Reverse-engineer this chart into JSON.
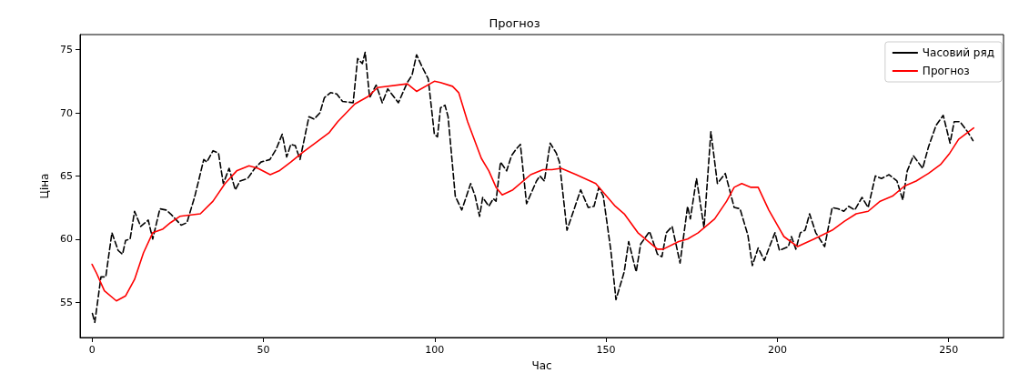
{
  "chart_data": {
    "type": "line",
    "title": "Прогноз",
    "xlabel": "Час",
    "ylabel": "Ціна",
    "xlim": [
      -3.5,
      266
    ],
    "xticks": [
      0,
      50,
      100,
      150,
      200,
      250
    ],
    "ylim": [
      52.2,
      76.2
    ],
    "yticks": [
      55,
      60,
      65,
      70,
      75
    ],
    "grid": false,
    "legend": "top right",
    "marker": "none",
    "series": [
      {
        "name": "Часовий ряд",
        "color": "#000000",
        "line_style": "dashed",
        "x": [
          0.1,
          0.8,
          2.6,
          4,
          5.8,
          7.6,
          8.9,
          9.8,
          11.1,
          12.4,
          14.2,
          16.4,
          17.7,
          19.8,
          21.6,
          22.9,
          24.3,
          26,
          27.7,
          30,
          32.6,
          33.5,
          35.3,
          36.9,
          38.3,
          40,
          41.8,
          43.2,
          45.4,
          47.5,
          49.3,
          51.9,
          53.7,
          55.5,
          56.8,
          58,
          59.3,
          60.7,
          63.3,
          64.8,
          66.5,
          67.8,
          69.6,
          71.4,
          73.1,
          76.2,
          77.5,
          78.9,
          79.7,
          81,
          82.9,
          84.7,
          86.3,
          89.4,
          92,
          93.4,
          94.7,
          96.4,
          98.1,
          99.9,
          100.8,
          101.7,
          103,
          103.9,
          106,
          107.9,
          110.5,
          111.8,
          113.1,
          114,
          115.8,
          117.1,
          117.9,
          119.2,
          121,
          122.4,
          123.7,
          125,
          126.8,
          129.7,
          130.7,
          132,
          133.7,
          135.5,
          136.4,
          138.6,
          142.6,
          144.8,
          146.5,
          147.9,
          149.2,
          151.4,
          152.9,
          155.3,
          156.6,
          158.8,
          160.1,
          162.7,
          165,
          166.3,
          167.6,
          169.3,
          171.6,
          173.8,
          174.6,
          176.4,
          178.6,
          180.6,
          182.5,
          184.8,
          187.4,
          189.1,
          191.4,
          192.7,
          194.4,
          196.2,
          198,
          199.3,
          200.6,
          203.2,
          204.1,
          205.4,
          206.7,
          208.1,
          209.4,
          211.2,
          213.8,
          216,
          217.7,
          219.4,
          220.8,
          222.6,
          224.7,
          226.5,
          228.6,
          230.4,
          232.6,
          234.9,
          236.6,
          237.9,
          239.7,
          242.4,
          244.1,
          246.3,
          248.4,
          250.4,
          251.6,
          253.3,
          255.5,
          257.1
        ],
        "values": [
          54.1,
          53.4,
          57.0,
          57.0,
          60.5,
          59.1,
          58.8,
          59.9,
          60.0,
          62.2,
          61.0,
          61.5,
          60.0,
          62.4,
          62.3,
          62.0,
          61.6,
          61.1,
          61.3,
          63.4,
          66.3,
          66.1,
          67.0,
          66.8,
          64.4,
          65.6,
          63.9,
          64.6,
          64.8,
          65.6,
          66.1,
          66.3,
          67.1,
          68.3,
          66.5,
          67.5,
          67.4,
          66.3,
          69.7,
          69.5,
          70.0,
          71.2,
          71.6,
          71.5,
          70.9,
          70.8,
          74.3,
          73.9,
          74.8,
          71.2,
          72.2,
          70.8,
          71.9,
          70.8,
          72.4,
          73.0,
          74.6,
          73.6,
          72.7,
          68.3,
          68.1,
          70.4,
          70.6,
          69.7,
          63.4,
          62.3,
          64.4,
          63.4,
          61.8,
          63.3,
          62.6,
          63.2,
          63.0,
          66.1,
          65.4,
          66.6,
          67.1,
          67.5,
          62.8,
          64.6,
          65.0,
          64.6,
          67.6,
          66.8,
          66.1,
          60.7,
          63.9,
          62.5,
          62.6,
          64.1,
          63.4,
          59.1,
          55.2,
          57.4,
          59.8,
          57.4,
          59.6,
          60.6,
          58.8,
          58.6,
          60.5,
          61.0,
          58.1,
          62.6,
          61.6,
          64.8,
          60.9,
          68.5,
          64.4,
          65.2,
          62.5,
          62.4,
          60.3,
          57.9,
          59.3,
          58.3,
          59.6,
          60.5,
          59.1,
          59.4,
          60.2,
          59.2,
          60.5,
          60.7,
          62.0,
          60.5,
          59.4,
          62.5,
          62.4,
          62.2,
          62.6,
          62.3,
          63.3,
          62.5,
          65.0,
          64.8,
          65.1,
          64.6,
          63.1,
          65.4,
          66.6,
          65.6,
          67.3,
          69.0,
          69.8,
          67.6,
          69.3,
          69.3,
          68.5,
          67.8
        ]
      },
      {
        "name": "Прогноз",
        "color": "#ff0000",
        "line_style": "solid",
        "x": [
          0,
          1.3,
          3.6,
          7.1,
          9.8,
          12.4,
          15,
          17.7,
          20.7,
          22.9,
          25.6,
          31.6,
          35.3,
          38.8,
          42.2,
          45.8,
          48.4,
          52,
          54.6,
          58,
          61.6,
          65.1,
          69.1,
          71.7,
          76.7,
          80.6,
          83.3,
          92,
          94.7,
          99.9,
          101.7,
          105.2,
          107,
          109.6,
          113.6,
          115.8,
          117.9,
          119.7,
          122.8,
          128,
          131.6,
          134.2,
          136.9,
          141.3,
          147,
          152.7,
          155.3,
          159.3,
          165,
          166.7,
          171.2,
          173.8,
          176.9,
          181.7,
          185.2,
          187.4,
          189.6,
          192.3,
          194.4,
          197.5,
          201.9,
          205.9,
          210.7,
          216,
          219.5,
          223,
          226.5,
          230,
          233.6,
          237.1,
          240.5,
          244.1,
          247.6,
          250.3,
          252.9,
          257.3
        ],
        "values": [
          58.0,
          57.3,
          55.9,
          55.1,
          55.5,
          56.8,
          58.9,
          60.5,
          60.8,
          61.3,
          61.8,
          62.0,
          63.0,
          64.4,
          65.4,
          65.8,
          65.6,
          65.1,
          65.4,
          66.1,
          66.9,
          67.6,
          68.4,
          69.3,
          70.7,
          71.3,
          72.0,
          72.3,
          71.7,
          72.5,
          72.4,
          72.1,
          71.6,
          69.3,
          66.4,
          65.4,
          64.1,
          63.5,
          63.9,
          65.1,
          65.5,
          65.5,
          65.6,
          65.1,
          64.4,
          62.6,
          62.0,
          60.5,
          59.2,
          59.2,
          59.8,
          60.0,
          60.5,
          61.6,
          63.0,
          64.1,
          64.4,
          64.1,
          64.1,
          62.3,
          60.2,
          59.4,
          60.0,
          60.7,
          61.4,
          62.0,
          62.2,
          63.0,
          63.4,
          64.2,
          64.6,
          65.2,
          65.9,
          66.8,
          67.9,
          68.8
        ]
      }
    ]
  }
}
